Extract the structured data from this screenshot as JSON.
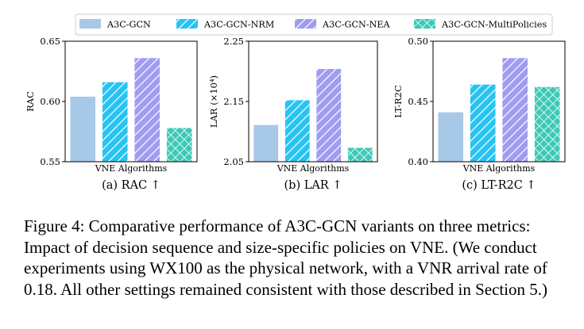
{
  "legend": [
    {
      "name": "A3C-GCN",
      "fill": "#a8c8e8",
      "stroke": "#a8c8e8",
      "pattern": "none"
    },
    {
      "name": "A3C-GCN-NRM",
      "fill": "#27c3f3",
      "stroke": "#ffffff",
      "pattern": "diag"
    },
    {
      "name": "A3C-GCN-NEA",
      "fill": "#a09cf0",
      "stroke": "#ffffff",
      "pattern": "diag"
    },
    {
      "name": "A3C-GCN-MultiPolicies",
      "fill": "#3ec9b6",
      "stroke": "#ffffff",
      "pattern": "cross"
    }
  ],
  "chart_data": [
    {
      "type": "bar",
      "xlabel": "VNE Algorithms",
      "ylabel": "RAC",
      "subcaption": "(a) RAC ↑",
      "ylim": [
        0.55,
        0.65
      ],
      "yticks": [
        "0.55",
        "0.60",
        "0.65"
      ],
      "ytick_values": [
        0.55,
        0.6,
        0.65
      ],
      "series": [
        {
          "name": "A3C-GCN",
          "value": 0.604
        },
        {
          "name": "A3C-GCN-NRM",
          "value": 0.616
        },
        {
          "name": "A3C-GCN-NEA",
          "value": 0.636
        },
        {
          "name": "A3C-GCN-MultiPolicies",
          "value": 0.578
        }
      ]
    },
    {
      "type": "bar",
      "xlabel": "VNE Algorithms",
      "ylabel": "LAR (×10⁴)",
      "subcaption": "(b) LAR ↑",
      "ylim": [
        2.05,
        2.25
      ],
      "yticks": [
        "2.05",
        "2.15",
        "2.25"
      ],
      "ytick_values": [
        2.05,
        2.15,
        2.25
      ],
      "series": [
        {
          "name": "A3C-GCN",
          "value": 2.111
        },
        {
          "name": "A3C-GCN-NRM",
          "value": 2.152
        },
        {
          "name": "A3C-GCN-NEA",
          "value": 2.204
        },
        {
          "name": "A3C-GCN-MultiPolicies",
          "value": 2.073
        }
      ]
    },
    {
      "type": "bar",
      "xlabel": "VNE Algorithms",
      "ylabel": "LT-R2C",
      "subcaption": "(c) LT-R2C ↑",
      "ylim": [
        0.4,
        0.5
      ],
      "yticks": [
        "0.40",
        "0.45",
        "0.50"
      ],
      "ytick_values": [
        0.4,
        0.45,
        0.5
      ],
      "series": [
        {
          "name": "A3C-GCN",
          "value": 0.441
        },
        {
          "name": "A3C-GCN-NRM",
          "value": 0.464
        },
        {
          "name": "A3C-GCN-NEA",
          "value": 0.486
        },
        {
          "name": "A3C-GCN-MultiPolicies",
          "value": 0.462
        }
      ]
    }
  ],
  "caption": "Figure 4: Comparative performance of A3C-GCN variants on three metrics: Impact of decision sequence and size-specific policies on VNE. (We conduct experiments using WX100 as the physical network, with a VNR arrival rate of 0.18. All other settings remained consistent with those described in Section 5.)"
}
